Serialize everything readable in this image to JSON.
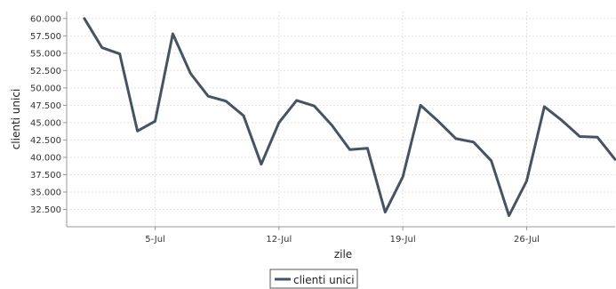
{
  "chart_data": {
    "type": "line",
    "title": "",
    "xlabel": "zile",
    "ylabel": "clienti unici",
    "ylim": [
      30000,
      61000
    ],
    "y_ticks": [
      32500,
      35000,
      37500,
      40000,
      42500,
      45000,
      47500,
      50000,
      52500,
      55000,
      57500,
      60000
    ],
    "y_tick_labels": [
      "32.500",
      "35.000",
      "37.500",
      "40.000",
      "42.500",
      "45.000",
      "47.500",
      "50.000",
      "52.500",
      "55.000",
      "57.500",
      "60.000"
    ],
    "x_ticks": [
      "2024-07-05",
      "2024-07-12",
      "2024-07-19",
      "2024-07-26"
    ],
    "x_tick_labels": [
      "5-Jul",
      "12-Jul",
      "19-Jul",
      "26-Jul"
    ],
    "x_range": [
      "2024-06-30",
      "2024-07-31"
    ],
    "grid": true,
    "legend_placement": "bottom-center",
    "series": [
      {
        "name": "clienti unici",
        "color": "#455463",
        "x": [
          "2024-07-01",
          "2024-07-02",
          "2024-07-03",
          "2024-07-04",
          "2024-07-05",
          "2024-07-06",
          "2024-07-07",
          "2024-07-08",
          "2024-07-09",
          "2024-07-10",
          "2024-07-11",
          "2024-07-12",
          "2024-07-13",
          "2024-07-14",
          "2024-07-15",
          "2024-07-16",
          "2024-07-17",
          "2024-07-18",
          "2024-07-19",
          "2024-07-20",
          "2024-07-21",
          "2024-07-22",
          "2024-07-23",
          "2024-07-24",
          "2024-07-25",
          "2024-07-26",
          "2024-07-27",
          "2024-07-28",
          "2024-07-29",
          "2024-07-30",
          "2024-07-31"
        ],
        "values": [
          60000,
          55800,
          54900,
          43800,
          45200,
          57800,
          52100,
          48800,
          48100,
          46000,
          39000,
          45000,
          48200,
          47400,
          44600,
          41100,
          41300,
          32100,
          37200,
          47500,
          45200,
          42700,
          42200,
          39500,
          31600,
          36600,
          47300,
          45300,
          43000,
          42900,
          39700
        ]
      }
    ]
  }
}
